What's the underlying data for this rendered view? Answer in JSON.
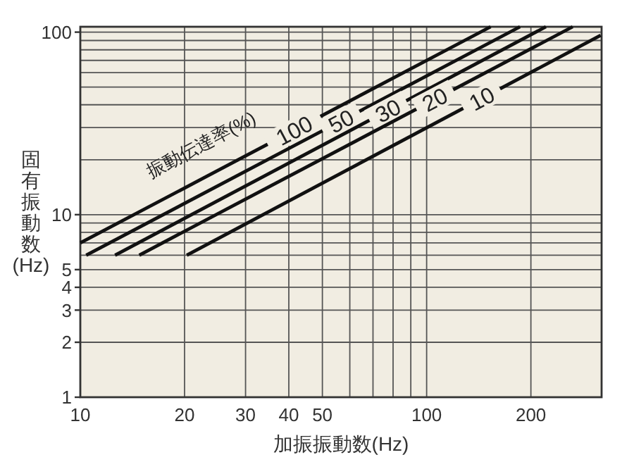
{
  "chart_data": {
    "type": "line",
    "xlabel": "加振振動数(Hz)",
    "ylabel": "固有振動数(Hz)",
    "legend_title": "振動伝達率(%)",
    "log": "xy",
    "grid": true,
    "marker": "none",
    "line_style": "solid",
    "xlim": [
      10,
      320
    ],
    "ylim": [
      1,
      107
    ],
    "xticks": [
      10,
      20,
      30,
      40,
      50,
      {
        "value": 60,
        "label": null
      },
      {
        "value": 70,
        "label": null
      },
      {
        "value": 80,
        "label": null
      },
      {
        "value": 90,
        "label": null
      },
      100,
      200
    ],
    "yticks": [
      1,
      2,
      3,
      4,
      5,
      {
        "value": 6,
        "label": null
      },
      {
        "value": 7,
        "label": null
      },
      {
        "value": 8,
        "label": null
      },
      {
        "value": 9,
        "label": null
      },
      10,
      {
        "value": 20,
        "label": null
      },
      {
        "value": 30,
        "label": null
      },
      {
        "value": 40,
        "label": null
      },
      {
        "value": 50,
        "label": null
      },
      {
        "value": 60,
        "label": null
      },
      {
        "value": 70,
        "label": null
      },
      {
        "value": 80,
        "label": null
      },
      {
        "value": 90,
        "label": null
      },
      100
    ],
    "series": [
      {
        "name": "100",
        "color": "#111111",
        "x": [
          10,
          153
        ],
        "values": [
          7,
          107
        ]
      },
      {
        "name": "50",
        "color": "#111111",
        "x": [
          10.4,
          186
        ],
        "values": [
          6,
          107
        ]
      },
      {
        "name": "30",
        "color": "#111111",
        "x": [
          12.6,
          221
        ],
        "values": [
          6,
          107
        ]
      },
      {
        "name": "20",
        "color": "#111111",
        "x": [
          14.8,
          264
        ],
        "values": [
          6,
          107
        ]
      },
      {
        "name": "10",
        "color": "#111111",
        "x": [
          20.3,
          318
        ],
        "values": [
          6,
          96
        ]
      }
    ]
  }
}
